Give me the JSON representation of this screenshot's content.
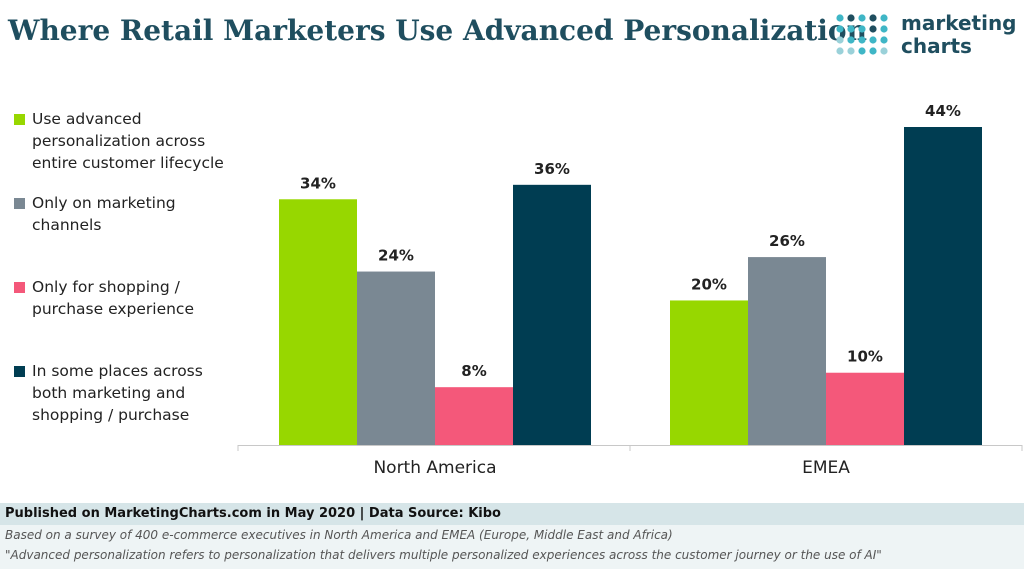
{
  "header": {
    "title": "Where Retail Marketers Use Advanced Personalization"
  },
  "logo": {
    "line1": "marketing",
    "line2": "charts",
    "dot_colors": [
      "#1f4e5f",
      "#3fb6c6",
      "#9ad1d9"
    ]
  },
  "chart_data": {
    "type": "bar",
    "title": "Where Retail Marketers Use Advanced Personalization",
    "categories": [
      "North America",
      "EMEA"
    ],
    "series": [
      {
        "name": "Use advanced personalization across entire customer lifecycle",
        "values": [
          34,
          20
        ],
        "color": "#97d700"
      },
      {
        "name": "Only on marketing channels",
        "values": [
          24,
          26
        ],
        "color": "#7a8893"
      },
      {
        "name": "Only for shopping / purchase experience",
        "values": [
          8,
          10
        ],
        "color": "#f4587a"
      },
      {
        "name": "In some places across both marketing and shopping / purchase",
        "values": [
          36,
          44
        ],
        "color": "#003d52"
      }
    ],
    "value_suffix": "%",
    "ylim": [
      0,
      44
    ],
    "grid": false,
    "legend": "left",
    "xlabel": "",
    "ylabel": ""
  },
  "footer": {
    "published": "Published on MarketingCharts.com in May 2020 | Data Source: Kibo",
    "note1": "Based on a survey of 400 e-commerce executives in North America and EMEA (Europe, Middle East and Africa)",
    "note2": "\"Advanced personalization refers to personalization that delivers multiple personalized experiences across the customer journey or the use of AI\""
  }
}
